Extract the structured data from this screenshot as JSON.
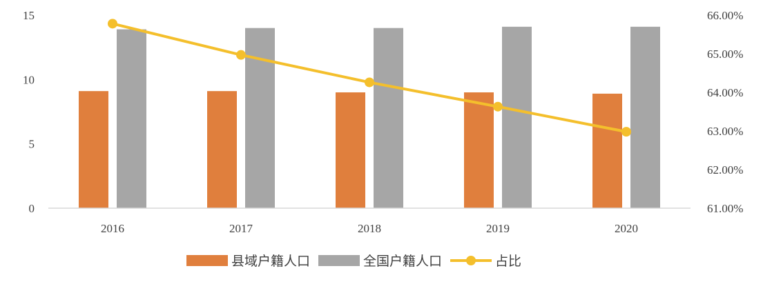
{
  "chart_data": {
    "type": "bar",
    "categories": [
      "2016",
      "2017",
      "2018",
      "2019",
      "2020"
    ],
    "series": [
      {
        "name": "县域户籍人口",
        "type": "bar",
        "axis": "left",
        "color": "#E07F3D",
        "values": [
          9.1,
          9.1,
          9.0,
          9.0,
          8.9
        ]
      },
      {
        "name": "全国户籍人口",
        "type": "bar",
        "axis": "left",
        "color": "#A6A6A6",
        "values": [
          13.9,
          14.0,
          14.0,
          14.1,
          14.1
        ]
      },
      {
        "name": "占比",
        "type": "line",
        "axis": "right",
        "color": "#F4BF2C",
        "values": [
          65.78,
          64.97,
          64.26,
          63.63,
          62.98
        ]
      }
    ],
    "y_left": {
      "min": 0,
      "max": 15,
      "ticks": [
        "0",
        "5",
        "10",
        "15"
      ]
    },
    "y_right": {
      "min": 61,
      "max": 66,
      "ticks": [
        "61.00%",
        "62.00%",
        "63.00%",
        "64.00%",
        "65.00%",
        "66.00%"
      ]
    },
    "grid": false,
    "legend_position": "bottom"
  }
}
